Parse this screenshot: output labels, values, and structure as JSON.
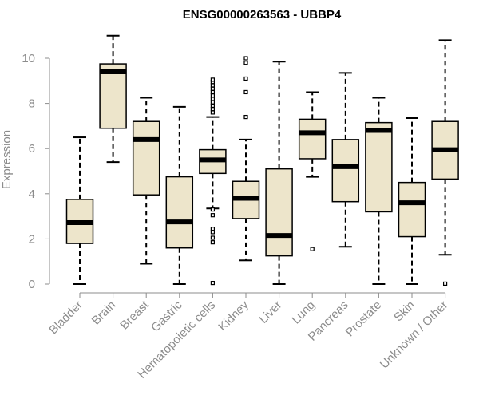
{
  "chart_data": {
    "type": "boxplot",
    "title": "ENSG00000263563 - UBBP4",
    "ylabel": "Expression",
    "xlabel": "",
    "ylim": [
      0,
      11
    ],
    "yticks": [
      0,
      2,
      4,
      6,
      8,
      10
    ],
    "grid": false,
    "legend": "none",
    "colors": {
      "box_fill": "#ede5cb",
      "box_stroke": "#000000",
      "median": "#000000",
      "axis": "#8c8c8c",
      "outlier": "#000000"
    },
    "categories": [
      "Bladder",
      "Brain",
      "Breast",
      "Gastric",
      "Hematopoietic cells",
      "Kidney",
      "Liver",
      "Lung",
      "Pancreas",
      "Prostate",
      "Skin",
      "Unknown / Other"
    ],
    "boxes": [
      {
        "category": "Bladder",
        "whisker_low": 0.0,
        "q1": 1.8,
        "median": 2.72,
        "q3": 3.75,
        "whisker_high": 6.5,
        "outliers": []
      },
      {
        "category": "Brain",
        "whisker_low": 5.4,
        "q1": 6.9,
        "median": 9.4,
        "q3": 9.75,
        "whisker_high": 11.0,
        "outliers": []
      },
      {
        "category": "Breast",
        "whisker_low": 0.9,
        "q1": 3.95,
        "median": 6.4,
        "q3": 7.2,
        "whisker_high": 8.25,
        "outliers": []
      },
      {
        "category": "Gastric",
        "whisker_low": 0.0,
        "q1": 1.6,
        "median": 2.75,
        "q3": 4.75,
        "whisker_high": 7.85,
        "outliers": []
      },
      {
        "category": "Hematopoietic cells",
        "whisker_low": 3.35,
        "q1": 4.9,
        "median": 5.5,
        "q3": 5.95,
        "whisker_high": 7.4,
        "outliers": [
          0.05,
          1.85,
          2.05,
          2.3,
          2.45,
          3.05,
          3.3,
          7.6,
          7.75,
          7.9,
          8.05,
          8.2,
          8.35,
          8.5,
          8.65,
          8.8,
          8.95,
          9.05
        ]
      },
      {
        "category": "Kidney",
        "whisker_low": 1.05,
        "q1": 2.9,
        "median": 3.8,
        "q3": 4.55,
        "whisker_high": 6.4,
        "outliers": [
          7.4,
          8.5,
          9.1,
          9.8,
          10.0
        ]
      },
      {
        "category": "Liver",
        "whisker_low": 0.0,
        "q1": 1.25,
        "median": 2.15,
        "q3": 5.1,
        "whisker_high": 9.85,
        "outliers": []
      },
      {
        "category": "Lung",
        "whisker_low": 4.75,
        "q1": 5.55,
        "median": 6.7,
        "q3": 7.3,
        "whisker_high": 8.5,
        "outliers": [
          1.55
        ]
      },
      {
        "category": "Pancreas",
        "whisker_low": 1.65,
        "q1": 3.65,
        "median": 5.2,
        "q3": 6.4,
        "whisker_high": 9.35,
        "outliers": []
      },
      {
        "category": "Prostate",
        "whisker_low": 0.0,
        "q1": 3.2,
        "median": 6.8,
        "q3": 7.15,
        "whisker_high": 8.25,
        "outliers": []
      },
      {
        "category": "Skin",
        "whisker_low": 0.0,
        "q1": 2.1,
        "median": 3.6,
        "q3": 4.5,
        "whisker_high": 7.35,
        "outliers": []
      },
      {
        "category": "Unknown / Other",
        "whisker_low": 1.3,
        "q1": 4.65,
        "median": 5.95,
        "q3": 7.2,
        "whisker_high": 10.8,
        "outliers": [
          0.02
        ]
      }
    ]
  }
}
